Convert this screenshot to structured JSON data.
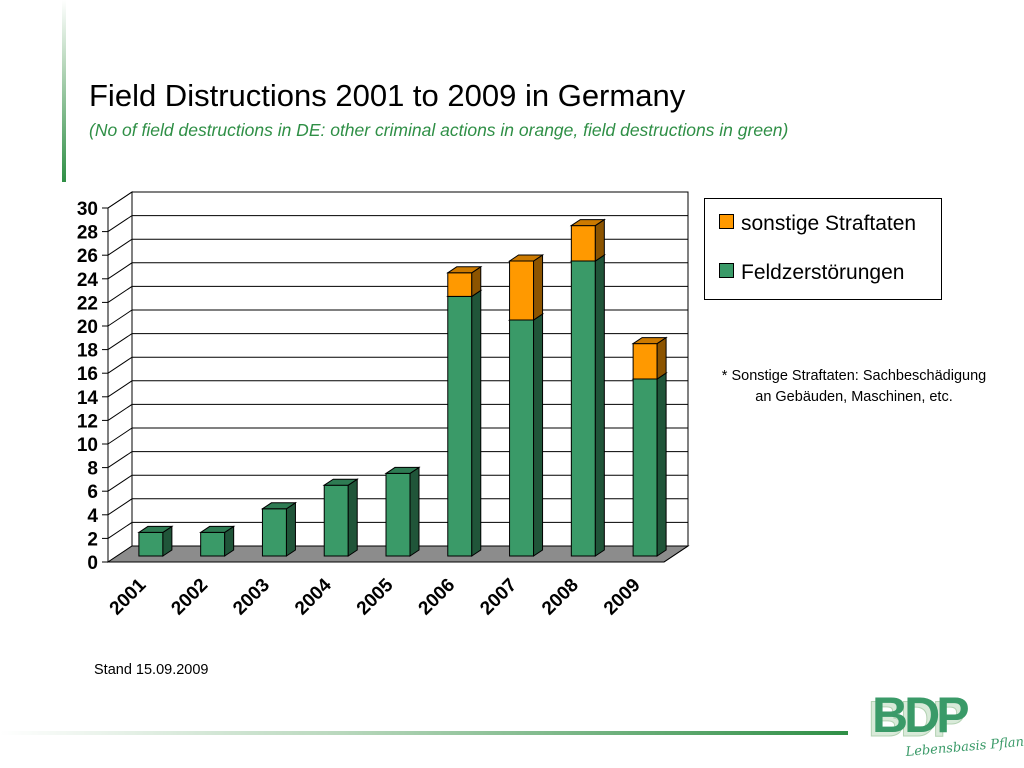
{
  "title": "Field Distructions 2001 to 2009 in Germany",
  "subtitle": "(No of field destructions in DE: other criminal actions in orange, field destructions in green)",
  "chart_data": {
    "type": "bar",
    "stacked": true,
    "three_d": true,
    "categories": [
      "2001",
      "2002",
      "2003",
      "2004",
      "2005",
      "2006",
      "2007",
      "2008",
      "2009"
    ],
    "series": [
      {
        "name": "Feldzerstörungen",
        "color": "#3a9a68",
        "values": [
          2,
          2,
          4,
          6,
          7,
          22,
          20,
          25,
          15
        ]
      },
      {
        "name": "sonstige Straftaten",
        "color": "#ff9900",
        "values": [
          0,
          0,
          0,
          0,
          0,
          2,
          5,
          3,
          3
        ]
      }
    ],
    "ylim": [
      0,
      30
    ],
    "yticks": [
      "0",
      "2",
      "4",
      "6",
      "8",
      "10",
      "12",
      "14",
      "16",
      "18",
      "20",
      "22",
      "24",
      "26",
      "28",
      "30"
    ],
    "grid": true,
    "legend_position": "right"
  },
  "legend": {
    "items": [
      {
        "label": "sonstige Straftaten",
        "color": "#ff9900"
      },
      {
        "label": "Feldzerstörungen",
        "color": "#3a9a68"
      }
    ]
  },
  "note": {
    "line1": "* Sonstige Straftaten: Sachbeschädigung",
    "line2": "an Gebäuden, Maschinen, etc."
  },
  "stand": "Stand 15.09.2009",
  "logo": {
    "text": "BDP",
    "tagline": "Lebensbasis Pflanze",
    "color": "#3a9a68"
  }
}
